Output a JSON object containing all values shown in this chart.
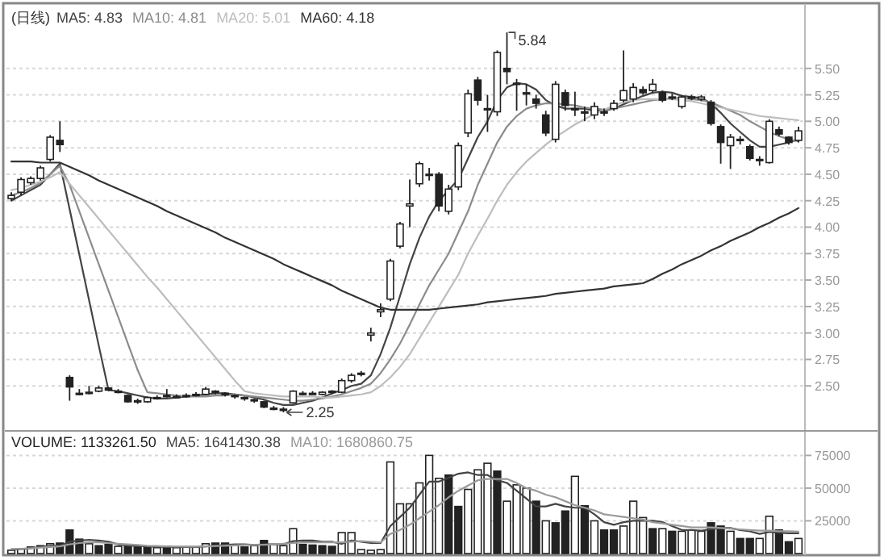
{
  "chart_data": [
    {
      "type": "candlestick",
      "title": "(日线)",
      "color": "#222222",
      "legend": "top left",
      "grid": "y",
      "ylim": [
        2.09,
        6.07
      ],
      "yticks": [
        {
          "value": 2.5,
          "label": "2.50"
        },
        {
          "value": 2.75,
          "label": "2.75"
        },
        {
          "value": 3.0,
          "label": "3.00"
        },
        {
          "value": 3.25,
          "label": "3.25"
        },
        {
          "value": 3.5,
          "label": "3.50"
        },
        {
          "value": 3.75,
          "label": "3.75"
        },
        {
          "value": 4.0,
          "label": "4.00"
        },
        {
          "value": 4.25,
          "label": "4.25"
        },
        {
          "value": 4.5,
          "label": "4.50"
        },
        {
          "value": 4.75,
          "label": "4.75"
        },
        {
          "value": 5.0,
          "label": "5.00"
        },
        {
          "value": 5.25,
          "label": "5.25"
        },
        {
          "value": 5.5,
          "label": "5.50"
        }
      ],
      "categories": [
        null,
        null,
        null,
        null,
        null,
        null,
        null,
        null,
        null,
        null,
        null,
        null,
        null,
        null,
        null,
        null,
        null,
        null,
        null,
        null,
        null,
        null,
        null,
        null,
        null,
        null,
        null,
        null,
        null,
        null,
        null,
        null,
        null,
        null,
        null,
        null,
        null,
        null,
        null,
        null,
        null,
        null,
        null,
        null,
        null,
        null,
        null,
        null,
        null,
        null,
        null,
        null,
        null,
        null,
        null,
        null,
        null,
        null,
        null,
        null,
        null,
        null,
        null,
        null,
        null,
        null,
        null,
        null,
        null,
        null,
        null,
        null,
        null,
        null,
        null,
        null,
        null,
        null,
        null,
        null,
        null,
        null
      ],
      "ohlc": [
        [
          4.27,
          4.33,
          4.25,
          4.3
        ],
        [
          4.33,
          4.47,
          4.3,
          4.45
        ],
        [
          4.42,
          4.48,
          4.4,
          4.46
        ],
        [
          4.46,
          4.58,
          4.44,
          4.56
        ],
        [
          4.64,
          4.87,
          4.62,
          4.85
        ],
        [
          4.82,
          5.0,
          4.71,
          4.78
        ],
        [
          2.58,
          2.6,
          2.36,
          2.49
        ],
        [
          2.43,
          2.47,
          2.41,
          2.43
        ],
        [
          2.43,
          2.5,
          2.42,
          2.44
        ],
        [
          2.45,
          2.5,
          2.44,
          2.48
        ],
        [
          2.48,
          2.49,
          2.45,
          2.46
        ],
        [
          2.45,
          2.47,
          2.43,
          2.45
        ],
        [
          2.41,
          2.42,
          2.34,
          2.35
        ],
        [
          2.35,
          2.38,
          2.33,
          2.36
        ],
        [
          2.35,
          2.4,
          2.34,
          2.39
        ],
        [
          2.39,
          2.41,
          2.37,
          2.39
        ],
        [
          2.41,
          2.47,
          2.39,
          2.41
        ],
        [
          2.4,
          2.42,
          2.38,
          2.4
        ],
        [
          2.4,
          2.43,
          2.39,
          2.41
        ],
        [
          2.42,
          2.44,
          2.4,
          2.42
        ],
        [
          2.42,
          2.49,
          2.41,
          2.47
        ],
        [
          2.45,
          2.46,
          2.42,
          2.44
        ],
        [
          2.43,
          2.44,
          2.4,
          2.42
        ],
        [
          2.41,
          2.42,
          2.38,
          2.4
        ],
        [
          2.39,
          2.4,
          2.36,
          2.38
        ],
        [
          2.37,
          2.38,
          2.34,
          2.36
        ],
        [
          2.35,
          2.36,
          2.29,
          2.3
        ],
        [
          2.29,
          2.31,
          2.27,
          2.29
        ],
        [
          2.28,
          2.3,
          2.25,
          2.27
        ],
        [
          2.34,
          2.46,
          2.33,
          2.45
        ],
        [
          2.43,
          2.45,
          2.41,
          2.42
        ],
        [
          2.43,
          2.45,
          2.42,
          2.43
        ],
        [
          2.42,
          2.45,
          2.41,
          2.44
        ],
        [
          2.45,
          2.46,
          2.42,
          2.44
        ],
        [
          2.44,
          2.57,
          2.43,
          2.55
        ],
        [
          2.55,
          2.62,
          2.53,
          2.6
        ],
        [
          2.61,
          2.64,
          2.59,
          2.62
        ],
        [
          2.98,
          3.05,
          2.92,
          3.0
        ],
        [
          3.2,
          3.28,
          3.15,
          3.22
        ],
        [
          3.32,
          3.7,
          3.3,
          3.68
        ],
        [
          3.82,
          4.05,
          3.8,
          4.03
        ],
        [
          4.2,
          4.45,
          4.0,
          4.22
        ],
        [
          4.41,
          4.62,
          4.38,
          4.6
        ],
        [
          4.5,
          4.56,
          4.44,
          4.5
        ],
        [
          4.5,
          4.52,
          4.15,
          4.2
        ],
        [
          4.15,
          4.4,
          4.12,
          4.36
        ],
        [
          4.38,
          4.8,
          4.35,
          4.77
        ],
        [
          4.89,
          5.3,
          4.85,
          5.26
        ],
        [
          5.39,
          5.42,
          5.15,
          5.2
        ],
        [
          5.12,
          5.25,
          4.9,
          5.12
        ],
        [
          5.09,
          5.67,
          5.05,
          5.65
        ],
        [
          5.5,
          5.84,
          5.35,
          5.47
        ],
        [
          5.36,
          5.4,
          5.1,
          5.36
        ],
        [
          5.27,
          5.35,
          5.15,
          5.27
        ],
        [
          5.21,
          5.25,
          5.12,
          5.17
        ],
        [
          5.06,
          5.1,
          4.86,
          4.89
        ],
        [
          4.83,
          5.38,
          4.8,
          5.35
        ],
        [
          5.27,
          5.3,
          5.1,
          5.15
        ],
        [
          5.12,
          5.28,
          5.05,
          5.12
        ],
        [
          5.09,
          5.14,
          5.0,
          5.09
        ],
        [
          5.06,
          5.18,
          5.02,
          5.14
        ],
        [
          5.09,
          5.12,
          5.05,
          5.09
        ],
        [
          5.12,
          5.2,
          5.1,
          5.17
        ],
        [
          5.2,
          5.67,
          5.18,
          5.29
        ],
        [
          5.21,
          5.36,
          5.18,
          5.32
        ],
        [
          5.3,
          5.33,
          5.25,
          5.27
        ],
        [
          5.29,
          5.4,
          5.27,
          5.35
        ],
        [
          5.27,
          5.29,
          5.18,
          5.2
        ],
        [
          5.23,
          5.26,
          5.2,
          5.23
        ],
        [
          5.14,
          5.25,
          5.12,
          5.23
        ],
        [
          5.23,
          5.25,
          5.2,
          5.23
        ],
        [
          5.21,
          5.25,
          5.19,
          5.23
        ],
        [
          5.18,
          5.2,
          4.96,
          4.98
        ],
        [
          4.95,
          4.97,
          4.6,
          4.8
        ],
        [
          4.77,
          4.88,
          4.55,
          4.85
        ],
        [
          4.83,
          4.86,
          4.78,
          4.83
        ],
        [
          4.76,
          4.78,
          4.63,
          4.65
        ],
        [
          4.64,
          4.67,
          4.58,
          4.64
        ],
        [
          4.61,
          5.02,
          4.6,
          5.0
        ],
        [
          4.92,
          4.95,
          4.86,
          4.88
        ],
        [
          4.85,
          4.86,
          4.78,
          4.8
        ],
        [
          4.82,
          4.95,
          4.8,
          4.91
        ]
      ],
      "series": [
        {
          "type": "line",
          "name": "MA5: 4.83",
          "color": "#444444",
          "values": [
            4.25,
            4.3,
            4.35,
            4.4,
            4.5,
            4.6,
            4.17,
            3.74,
            3.31,
            2.88,
            2.46,
            2.45,
            2.43,
            2.41,
            2.39,
            2.38,
            2.38,
            2.39,
            2.4,
            2.41,
            2.42,
            2.43,
            2.43,
            2.42,
            2.41,
            2.39,
            2.37,
            2.34,
            2.32,
            2.32,
            2.34,
            2.36,
            2.39,
            2.43,
            2.46,
            2.5,
            2.52,
            2.6,
            2.8,
            3.05,
            3.35,
            3.65,
            3.9,
            4.1,
            4.25,
            4.35,
            4.45,
            4.65,
            4.85,
            5.0,
            5.2,
            5.32,
            5.36,
            5.35,
            5.3,
            5.2,
            5.15,
            5.12,
            5.12,
            5.12,
            5.1,
            5.1,
            5.12,
            5.16,
            5.2,
            5.24,
            5.27,
            5.28,
            5.27,
            5.24,
            5.23,
            5.22,
            5.17,
            5.08,
            4.98,
            4.9,
            4.82,
            4.76,
            4.76,
            4.78,
            4.8,
            4.83
          ]
        },
        {
          "type": "line",
          "name": "MA10: 4.81",
          "color": "#8c8c8c",
          "values": [
            4.3,
            4.33,
            4.37,
            4.42,
            4.5,
            4.58,
            4.4,
            4.15,
            3.9,
            3.65,
            3.4,
            3.15,
            2.9,
            2.65,
            2.44,
            2.43,
            2.42,
            2.41,
            2.4,
            2.4,
            2.4,
            2.41,
            2.41,
            2.42,
            2.41,
            2.4,
            2.39,
            2.38,
            2.37,
            2.36,
            2.36,
            2.37,
            2.38,
            2.4,
            2.42,
            2.45,
            2.48,
            2.52,
            2.62,
            2.75,
            2.9,
            3.08,
            3.27,
            3.45,
            3.6,
            3.75,
            3.95,
            4.15,
            4.4,
            4.6,
            4.8,
            4.95,
            5.05,
            5.12,
            5.15,
            5.17,
            5.17,
            5.16,
            5.15,
            5.13,
            5.12,
            5.11,
            5.12,
            5.14,
            5.16,
            5.18,
            5.2,
            5.21,
            5.22,
            5.22,
            5.21,
            5.2,
            5.18,
            5.14,
            5.1,
            5.06,
            5.0,
            4.95,
            4.9,
            4.86,
            4.83,
            4.81
          ]
        },
        {
          "type": "line",
          "name": "MA20: 5.01",
          "color": "#bdbdbd",
          "values": [
            4.35,
            4.37,
            4.4,
            4.43,
            4.47,
            4.52,
            4.41,
            4.3,
            4.19,
            4.08,
            3.97,
            3.86,
            3.75,
            3.64,
            3.53,
            3.43,
            3.32,
            3.21,
            3.1,
            2.99,
            2.88,
            2.77,
            2.66,
            2.55,
            2.45,
            2.43,
            2.42,
            2.41,
            2.4,
            2.4,
            2.4,
            2.4,
            2.39,
            2.39,
            2.4,
            2.41,
            2.42,
            2.44,
            2.5,
            2.58,
            2.68,
            2.8,
            2.95,
            3.1,
            3.25,
            3.4,
            3.55,
            3.75,
            3.92,
            4.08,
            4.25,
            4.4,
            4.52,
            4.62,
            4.7,
            4.78,
            4.85,
            4.91,
            4.97,
            5.02,
            5.07,
            5.11,
            5.15,
            5.18,
            5.2,
            5.21,
            5.21,
            5.21,
            5.21,
            5.2,
            5.19,
            5.17,
            5.15,
            5.13,
            5.11,
            5.09,
            5.07,
            5.05,
            5.04,
            5.03,
            5.02,
            5.01
          ]
        },
        {
          "type": "line",
          "name": "MA60: 4.18",
          "color": "#333333",
          "values": [
            4.62,
            4.62,
            4.62,
            4.61,
            4.61,
            4.61,
            4.57,
            4.53,
            4.49,
            4.44,
            4.4,
            4.36,
            4.32,
            4.28,
            4.24,
            4.2,
            4.15,
            4.11,
            4.07,
            4.03,
            3.99,
            3.95,
            3.9,
            3.86,
            3.82,
            3.78,
            3.74,
            3.7,
            3.65,
            3.61,
            3.57,
            3.53,
            3.49,
            3.45,
            3.4,
            3.36,
            3.32,
            3.28,
            3.24,
            3.22,
            3.22,
            3.22,
            3.22,
            3.22,
            3.23,
            3.24,
            3.25,
            3.26,
            3.27,
            3.29,
            3.3,
            3.31,
            3.32,
            3.33,
            3.34,
            3.35,
            3.37,
            3.38,
            3.39,
            3.4,
            3.41,
            3.42,
            3.44,
            3.45,
            3.46,
            3.47,
            3.51,
            3.56,
            3.6,
            3.65,
            3.69,
            3.73,
            3.78,
            3.82,
            3.87,
            3.91,
            3.95,
            4.0,
            4.04,
            4.09,
            4.13,
            4.18
          ]
        }
      ],
      "annotations": [
        "5.84",
        "2.25"
      ]
    },
    {
      "type": "bar",
      "legend": "top left",
      "grid": "y",
      "ylim": [
        0,
        92500
      ],
      "yticks": [
        25000,
        50000,
        75000
      ],
      "categories": [
        null,
        null,
        null,
        null,
        null,
        null,
        null,
        null,
        null,
        null,
        null,
        null,
        null,
        null,
        null,
        null,
        null,
        null,
        null,
        null,
        null,
        null,
        null,
        null,
        null,
        null,
        null,
        null,
        null,
        null,
        null,
        null,
        null,
        null,
        null,
        null,
        null,
        null,
        null,
        null,
        null,
        null,
        null,
        null,
        null,
        null,
        null,
        null,
        null,
        null,
        null,
        null,
        null,
        null,
        null,
        null,
        null,
        null,
        null,
        null,
        null,
        null,
        null,
        null,
        null,
        null,
        null,
        null,
        null,
        null,
        null,
        null,
        null,
        null,
        null,
        null,
        null,
        null,
        null,
        null,
        null,
        null
      ],
      "series": [
        {
          "type": "bar",
          "name": "VOLUME: 1133261.50",
          "color": "#222222",
          "values": [
            2500,
            3500,
            5000,
            6000,
            7500,
            8000,
            18000,
            11000,
            7500,
            6000,
            7000,
            5500,
            6000,
            5000,
            5000,
            4500,
            5500,
            4500,
            5000,
            5000,
            7500,
            8000,
            8000,
            6500,
            5000,
            6000,
            10000,
            7000,
            6000,
            19000,
            7000,
            6500,
            6000,
            5500,
            16000,
            16000,
            3000,
            2500,
            3000,
            70000,
            38000,
            38000,
            54000,
            75000,
            57500,
            60000,
            36000,
            49000,
            64000,
            69000,
            63000,
            40000,
            52500,
            50000,
            40000,
            25000,
            23500,
            32500,
            59000,
            36500,
            25000,
            18000,
            18000,
            21000,
            40000,
            27500,
            19000,
            19000,
            17000,
            17000,
            18000,
            17000,
            23500,
            21000,
            17000,
            11500,
            11500,
            11500,
            28500,
            18000,
            9000,
            11500
          ],
          "colors": [
            "#ffffff",
            "#ffffff",
            "#ffffff",
            "#ffffff",
            "#ffffff",
            "#222222",
            "#222222",
            "#222222",
            "#ffffff",
            "#222222",
            "#222222",
            "#ffffff",
            "#222222",
            "#222222",
            "#222222",
            "#ffffff",
            "#222222",
            "#ffffff",
            "#ffffff",
            "#ffffff",
            "#ffffff",
            "#222222",
            "#222222",
            "#ffffff",
            "#222222",
            "#ffffff",
            "#222222",
            "#ffffff",
            "#ffffff",
            "#ffffff",
            "#222222",
            "#222222",
            "#222222",
            "#222222",
            "#ffffff",
            "#ffffff",
            "#ffffff",
            "#ffffff",
            "#ffffff",
            "#ffffff",
            "#ffffff",
            "#ffffff",
            "#ffffff",
            "#ffffff",
            "#ffffff",
            "#222222",
            "#222222",
            "#ffffff",
            "#ffffff",
            "#ffffff",
            "#222222",
            "#ffffff",
            "#ffffff",
            "#ffffff",
            "#222222",
            "#ffffff",
            "#222222",
            "#222222",
            "#ffffff",
            "#222222",
            "#ffffff",
            "#222222",
            "#222222",
            "#ffffff",
            "#ffffff",
            "#ffffff",
            "#222222",
            "#ffffff",
            "#222222",
            "#ffffff",
            "#ffffff",
            "#ffffff",
            "#222222",
            "#222222",
            "#ffffff",
            "#222222",
            "#222222",
            "#ffffff",
            "#ffffff",
            "#222222",
            "#222222",
            "#ffffff"
          ]
        },
        {
          "type": "line",
          "name": "MA5: 1641430.38",
          "color": "#444444",
          "values": [
            3000,
            3500,
            4000,
            5000,
            6000,
            6000,
            9000,
            10000,
            10500,
            10000,
            9000,
            7000,
            6000,
            6000,
            5500,
            5200,
            5200,
            5000,
            5000,
            5000,
            5500,
            6000,
            6500,
            7000,
            7000,
            6500,
            7000,
            7000,
            7000,
            9500,
            10000,
            10000,
            9000,
            9000,
            7500,
            10000,
            9000,
            8000,
            8000,
            21000,
            28000,
            35000,
            45000,
            55000,
            55000,
            58000,
            61000,
            62000,
            60000,
            60000,
            56000,
            54000,
            48000,
            42000,
            36000,
            36000,
            38000,
            36000,
            35000,
            35000,
            30000,
            24000,
            22000,
            24000,
            25000,
            25000,
            25000,
            24000,
            21000,
            18000,
            18000,
            17500,
            18500,
            19500,
            19500,
            18000,
            17000,
            15000,
            16500,
            16000,
            15500,
            15500
          ]
        },
        {
          "type": "line",
          "name": "MA10: 1680860.75",
          "color": "#9a9a9a",
          "values": [
            3500,
            3700,
            4000,
            4500,
            5000,
            5500,
            7000,
            8000,
            8500,
            8500,
            8000,
            7500,
            7000,
            6500,
            6000,
            5800,
            5500,
            5400,
            5300,
            5300,
            5500,
            5800,
            6000,
            6200,
            6500,
            6500,
            6700,
            7000,
            7500,
            8000,
            8500,
            8500,
            8500,
            8500,
            8500,
            9000,
            9500,
            9000,
            8500,
            15000,
            18000,
            22000,
            27000,
            32000,
            37000,
            43000,
            48000,
            52000,
            56000,
            57000,
            57000,
            57000,
            54000,
            50000,
            48000,
            45000,
            43000,
            40000,
            37000,
            35000,
            33000,
            30000,
            29000,
            28000,
            27000,
            26000,
            24000,
            23000,
            22000,
            21000,
            20000,
            20000,
            20000,
            19500,
            19000,
            18500,
            18000,
            17500,
            17500,
            17000,
            17000,
            16800
          ]
        }
      ]
    }
  ]
}
